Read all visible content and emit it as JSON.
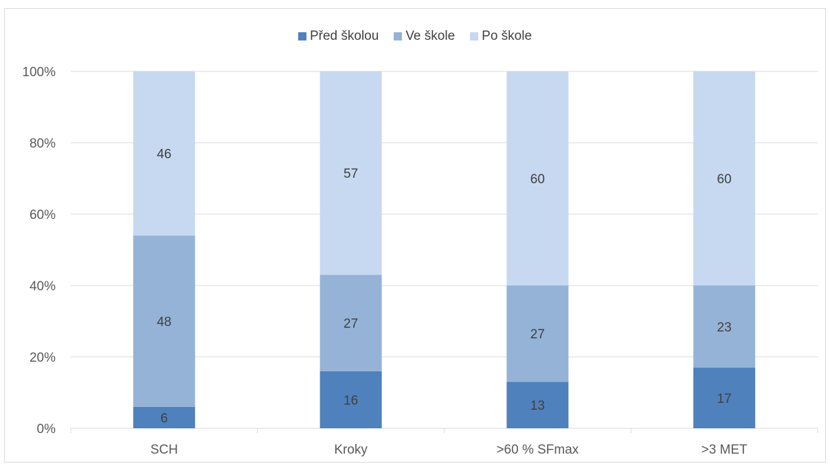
{
  "chart_data": {
    "type": "bar",
    "stacked": true,
    "normalized": true,
    "categories": [
      "SCH",
      "Kroky",
      ">60 % SFmax",
      ">3 MET"
    ],
    "series": [
      {
        "name": "Před školou",
        "values": [
          6,
          16,
          13,
          17
        ],
        "color": "#4f81bd"
      },
      {
        "name": "Ve škole",
        "values": [
          48,
          27,
          27,
          23
        ],
        "color": "#95b3d7"
      },
      {
        "name": "Po škole",
        "values": [
          46,
          57,
          60,
          60
        ],
        "color": "#c6d9f0"
      }
    ],
    "yticks": [
      "0%",
      "20%",
      "40%",
      "60%",
      "80%",
      "100%"
    ],
    "ylim": [
      0,
      100
    ],
    "grid": true,
    "legend_position": "top"
  }
}
